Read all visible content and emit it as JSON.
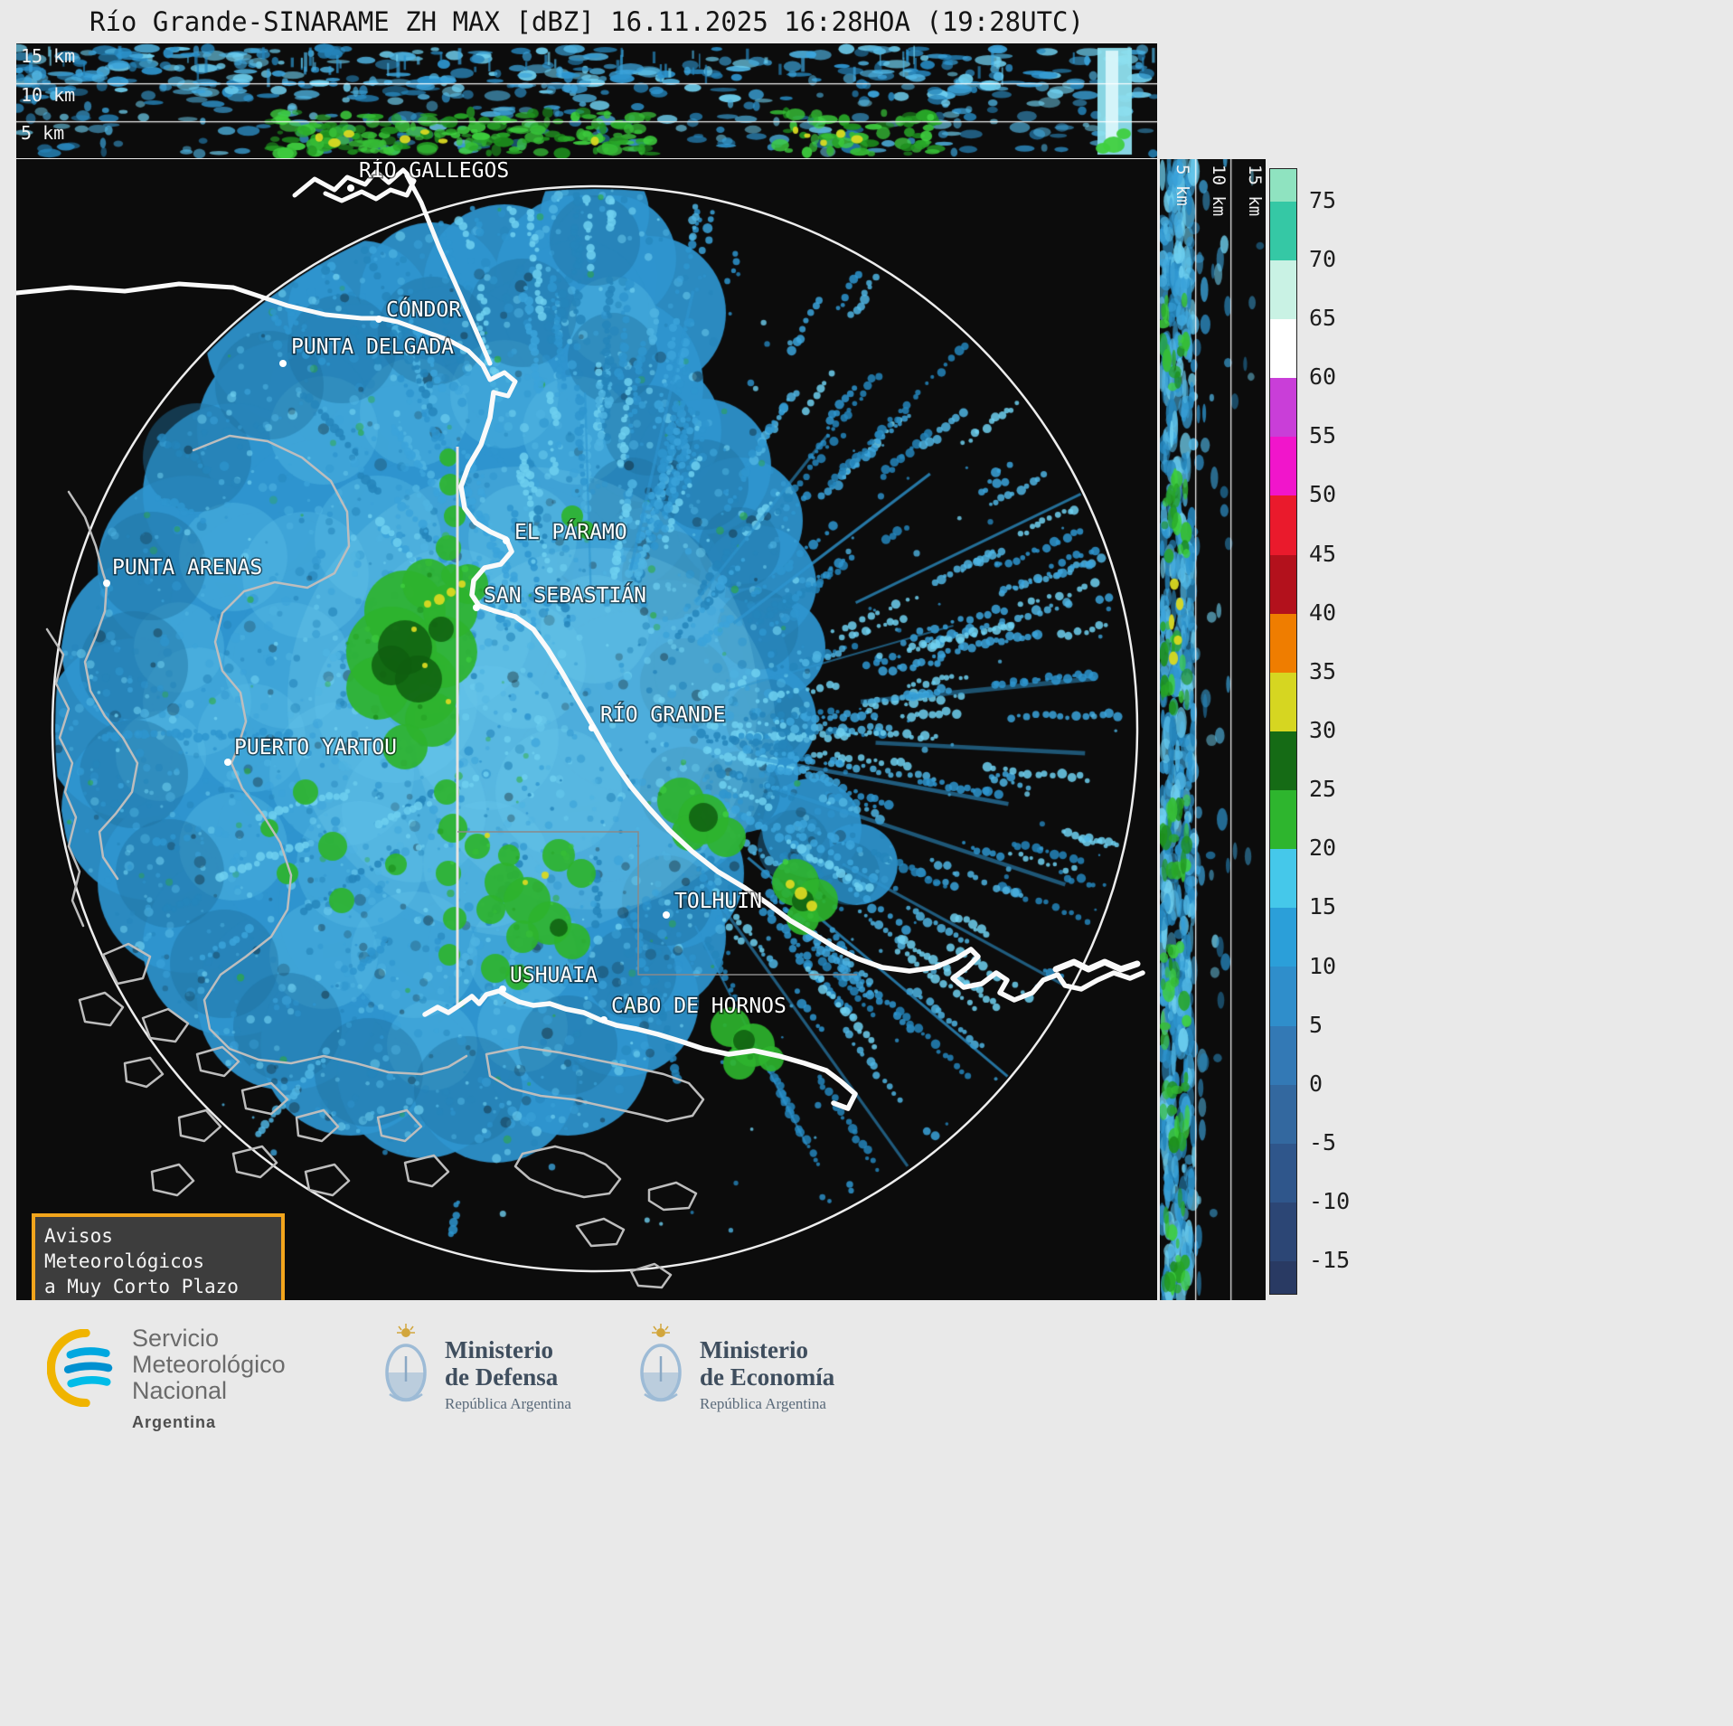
{
  "title": "Río Grande-SINARAME ZH MAX [dBZ] 16.11.2025 16:28HOA (19:28UTC)",
  "top_panel": {
    "altitude_labels": [
      "15 km",
      "10 km",
      "5 km"
    ]
  },
  "right_panel": {
    "altitude_labels": [
      "5 km",
      "10 km",
      "15 km"
    ]
  },
  "map": {
    "cities": [
      {
        "name": "RÍO GALLEGOS",
        "dot": [
          370,
          32
        ],
        "label": [
          379,
          20
        ]
      },
      {
        "name": "CÓNDOR",
        "dot": [
          401,
          177
        ],
        "label": [
          409,
          174
        ]
      },
      {
        "name": "PUNTA DELGADA",
        "dot": [
          295,
          226
        ],
        "label": [
          304,
          215
        ]
      },
      {
        "name": "EL PÁRAMO",
        "dot": [
          542,
          422
        ],
        "label": [
          551,
          420
        ]
      },
      {
        "name": "SAN SEBASTIÁN",
        "dot": [
          509,
          496
        ],
        "label": [
          517,
          490
        ]
      },
      {
        "name": "PUNTA ARENAS",
        "dot": [
          100,
          469
        ],
        "label": [
          106,
          459
        ]
      },
      {
        "name": "RÍO GRANDE",
        "dot": [
          637,
          629
        ],
        "label": [
          646,
          622
        ]
      },
      {
        "name": "PUERTO YARTOU",
        "dot": [
          234,
          667
        ],
        "label": [
          241,
          658
        ]
      },
      {
        "name": "TOLHUIN",
        "dot": [
          719,
          836
        ],
        "label": [
          728,
          828
        ]
      },
      {
        "name": "USHUAIA",
        "dot": [
          538,
          918
        ],
        "label": [
          546,
          910
        ]
      },
      {
        "name": "CABO DE HORNOS",
        "dot": [
          650,
          952
        ],
        "label": [
          658,
          944
        ]
      }
    ]
  },
  "colorbar": {
    "unit": "dBZ",
    "tick_values": [
      75,
      70,
      65,
      60,
      55,
      50,
      45,
      40,
      35,
      30,
      25,
      20,
      15,
      10,
      5,
      0,
      -5,
      -10,
      -15
    ],
    "segment_colors": [
      "#8fe3c0",
      "#35c8a5",
      "#c9f2e4",
      "#ffffff",
      "#c93ed8",
      "#f115cb",
      "#ea1a2c",
      "#b3111c",
      "#ef7d00",
      "#d6d621",
      "#156b15",
      "#2eb52e",
      "#45c8ea",
      "#2b9fd9",
      "#2f8ecb",
      "#3379b5",
      "#33689f",
      "#2f568b",
      "#2c4675",
      "#293a63"
    ]
  },
  "alert_box": {
    "line1": "Avisos Meteorológicos",
    "line2": "a Muy Corto Plazo",
    "border_color": "#f2a51c"
  },
  "footer": {
    "smn": {
      "line1": "Servicio",
      "line2": "Meteorológico",
      "line3": "Nacional",
      "country": "Argentina"
    },
    "defensa": {
      "line1": "Ministerio",
      "line2": "de Defensa",
      "sub": "República Argentina"
    },
    "economia": {
      "line1": "Ministerio",
      "line2": "de Economía",
      "sub": "República Argentina"
    }
  },
  "echo_palette": {
    "blues": [
      "#2e95cf",
      "#4fb4e2",
      "#2585bb",
      "#6fd0f0",
      "#3ba3da"
    ],
    "greens": [
      "#27a527",
      "#3fcf3f",
      "#1d8f1d",
      "#36bd36"
    ],
    "yellow": "#d9d922",
    "dark_green": "#0f5e0f",
    "background": "#0c0c0c"
  }
}
